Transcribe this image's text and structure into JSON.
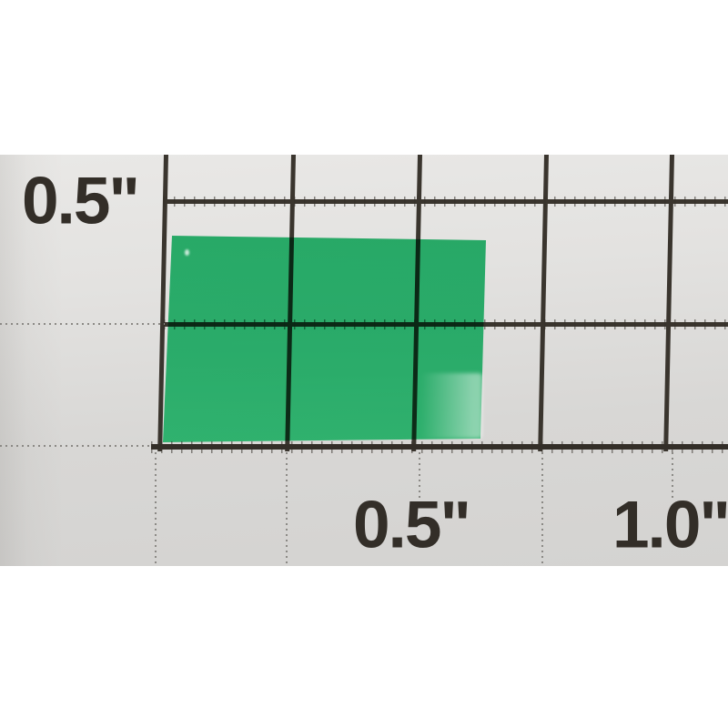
{
  "scene": {
    "description": "Photo of a translucent green rectangular plastic film piece lying on a white board printed with a black measurement grid",
    "object_color_hex": "#21a45f",
    "paper_color_hex": "#dcdbd9",
    "grid_line_color_hex": "#3a352e",
    "label_text_color_hex": "#332e28"
  },
  "ruler": {
    "left_label": "0.5\"",
    "bottom_labels": [
      "0.5\"",
      "1.0\""
    ]
  }
}
